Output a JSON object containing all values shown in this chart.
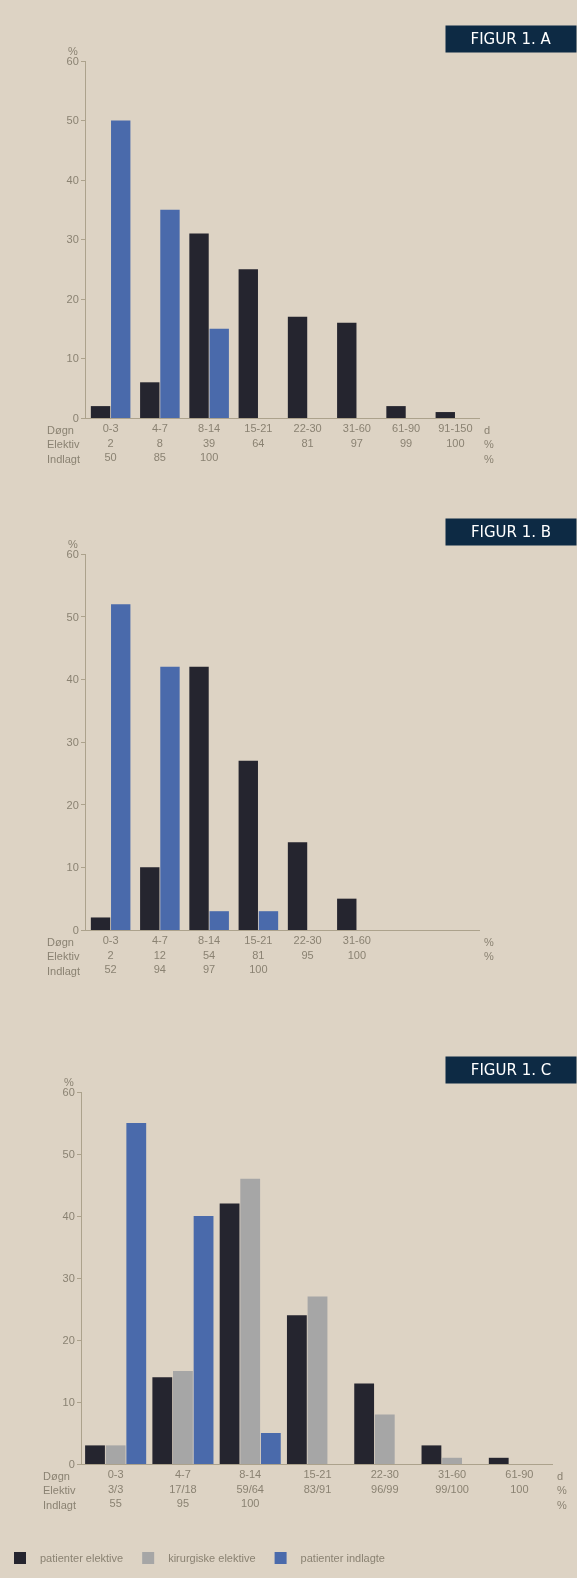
{
  "chart_data": [
    {
      "type": "bar",
      "title": "FIGUR 1. A",
      "ylabel": "%",
      "xlabel": "Døgn\nElektiv\nIndlagt",
      "annotations": [
        "d\n%\n%"
      ],
      "categories": [
        "0-3\n2\n50",
        "4-7\n8\n85",
        "8-14\n39\n100",
        "15-21\n64",
        "22-30\n81",
        "31-60\n97",
        "61-90\n99",
        "91-150\n100"
      ],
      "series": [
        {
          "color": "#25252f",
          "values": [
            2,
            6,
            31,
            25,
            17,
            16,
            2,
            1
          ]
        },
        {
          "color": "#4a6aab",
          "values": [
            50,
            35,
            15,
            null,
            null,
            null,
            null,
            null
          ]
        }
      ],
      "ylim": [
        0,
        60
      ],
      "yticks": [
        0,
        10,
        20,
        30,
        40,
        50,
        60
      ],
      "grid": false
    },
    {
      "type": "bar",
      "title": "FIGUR 1. B",
      "ylabel": "%",
      "xlabel": "Døgn\nElektiv\nIndlagt",
      "annotations": [
        "\n%\n%"
      ],
      "categories": [
        "0-3\n2\n52",
        "4-7\n12\n94",
        "8-14\n54\n97",
        "15-21\n81\n100",
        "22-30\n95",
        "31-60\n100",
        null,
        null
      ],
      "series": [
        {
          "color": "#25252f",
          "values": [
            2,
            10,
            42,
            27,
            14,
            5,
            null,
            null
          ]
        },
        {
          "color": "#4a6aab",
          "values": [
            52,
            42,
            3,
            3,
            null,
            null,
            null,
            null
          ]
        }
      ],
      "ylim": [
        0,
        60
      ],
      "yticks": [
        0,
        10,
        20,
        30,
        40,
        50,
        60
      ],
      "grid": false
    },
    {
      "type": "bar",
      "title": "FIGUR 1. C",
      "ylabel": "%",
      "xlabel": "Døgn\nElektiv\nIndlagt",
      "annotations": [
        "d\n%\n%"
      ],
      "categories": [
        "0-3\n3/3\n55",
        "4-7\n17/18\n95",
        "8-14\n59/64\n100",
        "15-21\n83/91",
        "22-30\n96/99",
        "31-60\n99/100",
        "61-90\n100"
      ],
      "series": [
        {
          "name": "patienter elektive",
          "color": "#25252f",
          "values": [
            3,
            14,
            42,
            24,
            13,
            3,
            1
          ]
        },
        {
          "name": "kirurgiske elektive",
          "color": "#a6a6a6",
          "values": [
            3,
            15,
            46,
            27,
            8,
            1,
            null
          ]
        },
        {
          "name": "patienter indlagte",
          "color": "#4a6aab",
          "values": [
            55,
            40,
            5,
            null,
            null,
            null,
            null
          ]
        }
      ],
      "ylim": [
        0,
        60
      ],
      "yticks": [
        0,
        10,
        20,
        30,
        40,
        50,
        60
      ],
      "grid": false,
      "legend": "bottom"
    }
  ]
}
